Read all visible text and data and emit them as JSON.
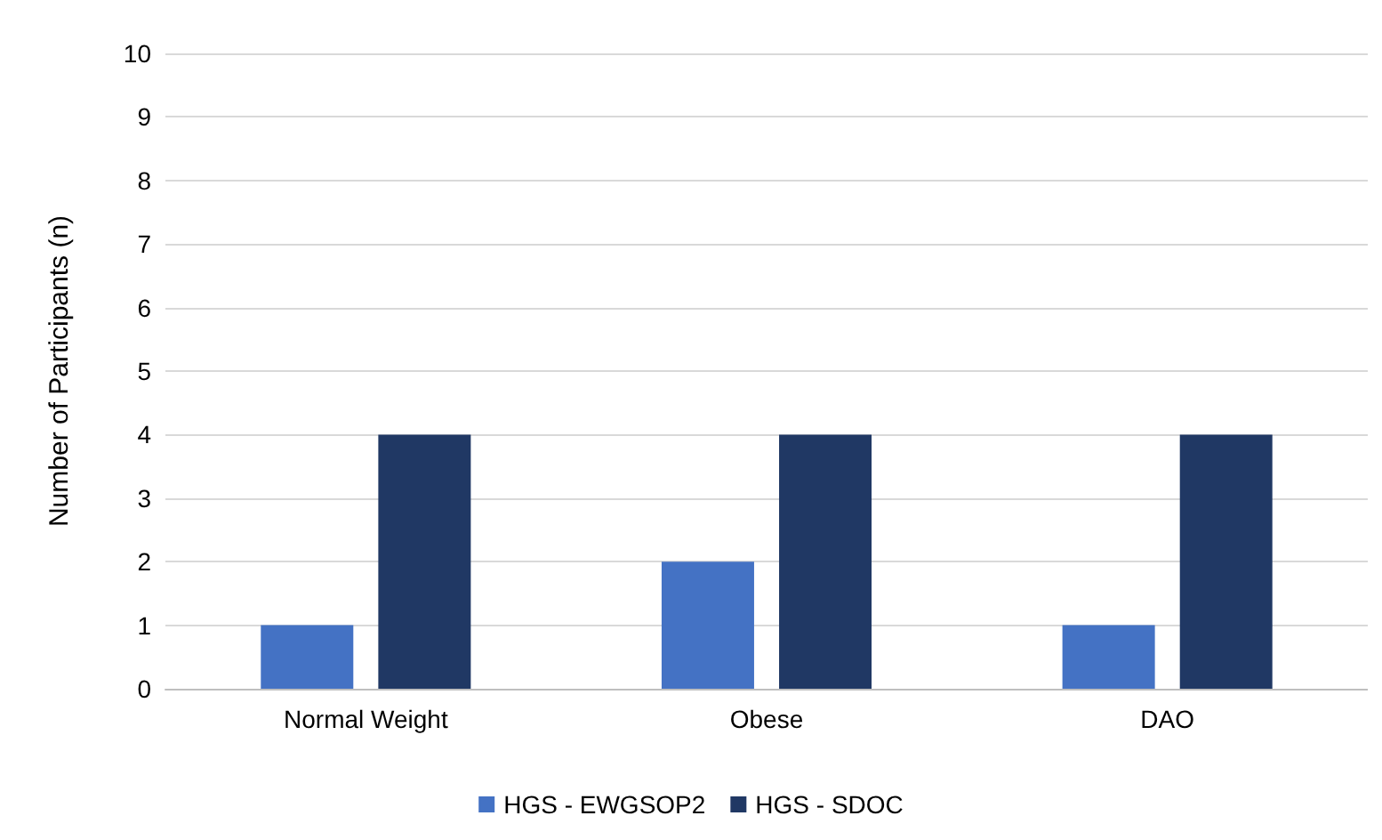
{
  "chart_data": {
    "type": "bar",
    "ylabel": "Number of Participants (n)",
    "categories": [
      "Normal Weight",
      "Obese",
      "DAO"
    ],
    "series": [
      {
        "name": "HGS - EWGSOP2",
        "color": "#4472c4",
        "values": [
          1,
          2,
          1
        ]
      },
      {
        "name": "HGS - SDOC",
        "color": "#203864",
        "values": [
          4,
          4,
          4
        ]
      }
    ],
    "ylim": [
      0,
      10
    ],
    "yticks": [
      0,
      1,
      2,
      3,
      4,
      5,
      6,
      7,
      8,
      9,
      10
    ],
    "grid": "y",
    "legend": "bottom"
  }
}
